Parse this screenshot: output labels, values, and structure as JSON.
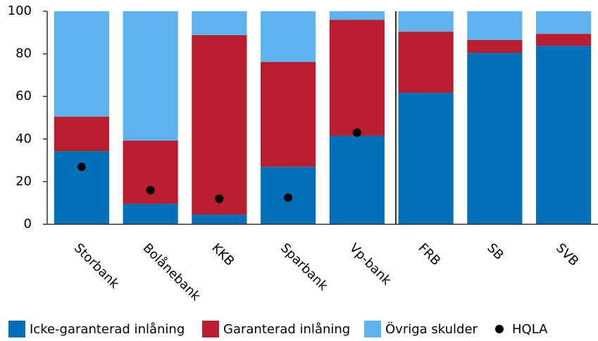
{
  "chart_data": {
    "type": "stacked_bar",
    "categories": [
      "Storbank",
      "Bolånebank",
      "KKB",
      "Sparbank",
      "Vp-bank",
      "FRB",
      "SB",
      "SVB"
    ],
    "series": [
      {
        "name": "Icke-garanterad inlåning",
        "color": "#0070b8",
        "values": [
          34.3,
          9.6,
          4.6,
          27,
          41.6,
          61.7,
          80.5,
          83.8
        ]
      },
      {
        "name": "Garanterad inlåning",
        "color": "#b81e2d",
        "values": [
          16.2,
          29.7,
          84.2,
          49.2,
          54.4,
          28.7,
          6,
          5.6
        ]
      },
      {
        "name": "Övriga skulder",
        "color": "#5eb3ef",
        "values": [
          49.5,
          60.7,
          11.2,
          23.8,
          4,
          9.6,
          13.5,
          10.6
        ]
      }
    ],
    "points": {
      "name": "HQLA",
      "color": "#000000",
      "values": [
        27,
        16,
        12,
        12.5,
        43,
        null,
        null,
        null
      ]
    },
    "ylim": [
      0,
      100
    ],
    "yticks": [
      0,
      20,
      40,
      60,
      80,
      100
    ]
  }
}
